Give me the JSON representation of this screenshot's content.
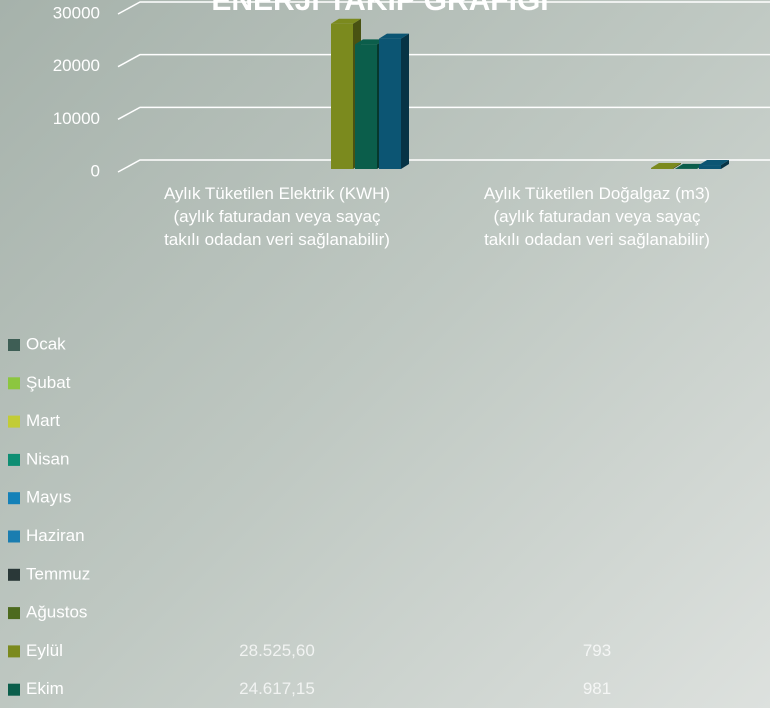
{
  "chart_data": {
    "type": "bar3d",
    "title": "ENERJİ TAKİP GRAFİĞİ",
    "categories": [
      "Aylık Tüketilen Elektrik (KWH) (aylık faturadan veya sayaç takılı odadan veri sağlanabilir)",
      "Aylık Tüketilen Doğalgaz (m3) (aylık faturadan veya sayaç takılı odadan veri sağlanabilir)"
    ],
    "ylim": [
      0,
      30000
    ],
    "yticks": [
      0,
      10000,
      20000,
      30000
    ],
    "grid": true,
    "series": [
      {
        "name": "Ocak",
        "color": "#3e5e55",
        "values": [
          null,
          null
        ]
      },
      {
        "name": "Şubat",
        "color": "#8cc63f",
        "values": [
          null,
          null
        ]
      },
      {
        "name": "Mart",
        "color": "#c2cc36",
        "values": [
          null,
          null
        ]
      },
      {
        "name": "Nisan",
        "color": "#0e8e73",
        "values": [
          null,
          null
        ]
      },
      {
        "name": "Mayıs",
        "color": "#1481b8",
        "values": [
          null,
          null
        ]
      },
      {
        "name": "Haziran",
        "color": "#1a7db0",
        "values": [
          null,
          null
        ]
      },
      {
        "name": "Temmuz",
        "color": "#2a3838",
        "values": [
          null,
          null
        ]
      },
      {
        "name": "Ağustos",
        "color": "#4d6a1e",
        "values": [
          null,
          null
        ]
      },
      {
        "name": "Eylül",
        "color": "#7b8a1e",
        "values": [
          28525.6,
          793
        ],
        "value_labels": [
          "28.525,60",
          "793"
        ]
      },
      {
        "name": "Ekim",
        "color": "#0b5e4b",
        "values": [
          24617.15,
          981
        ],
        "value_labels": [
          "24.617,15",
          "981"
        ]
      },
      {
        "name": null,
        "color": "#0c5573",
        "values": [
          25700,
          1700
        ]
      }
    ]
  }
}
